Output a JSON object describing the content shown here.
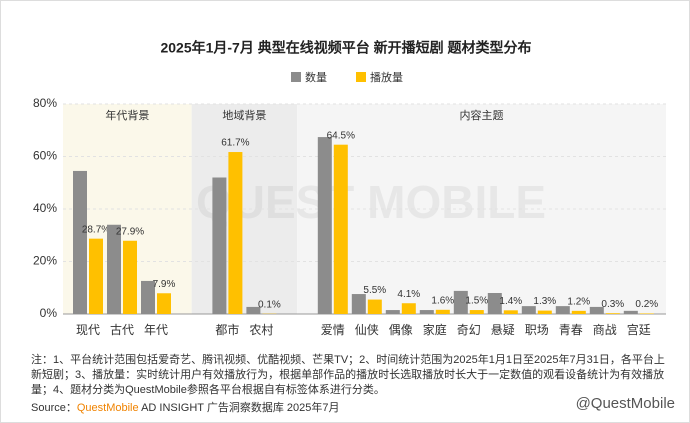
{
  "chart_data": {
    "type": "bar",
    "title": "2025年1月-7月 典型在线视频平台 新开播短剧 题材类型分布",
    "categories": [
      "现代",
      "古代",
      "年代",
      "都市",
      "农村",
      "爱情",
      "仙侠",
      "偶像",
      "家庭",
      "奇幻",
      "悬疑",
      "职场",
      "青春",
      "商战",
      "宫廷"
    ],
    "groups": [
      {
        "name": "年代背景",
        "members": [
          "现代",
          "古代",
          "年代"
        ],
        "color": "#fbf8ea"
      },
      {
        "name": "地域背景",
        "members": [
          "都市",
          "农村"
        ],
        "color": "#ececec"
      },
      {
        "name": "内容主题",
        "members": [
          "爱情",
          "仙侠",
          "偶像",
          "家庭",
          "奇幻",
          "悬疑",
          "职场",
          "青春",
          "商战",
          "宫廷"
        ],
        "color": "#f5f5f5"
      }
    ],
    "series": [
      {
        "name": "数量",
        "color": "#8c8c8c",
        "values": [
          54.5,
          34,
          12.6,
          52,
          2.7,
          67.4,
          7.6,
          1.5,
          1.5,
          8.8,
          8,
          3,
          3,
          2.7,
          1.2
        ]
      },
      {
        "name": "播放量",
        "color": "#ffc000",
        "values": [
          28.7,
          27.9,
          7.9,
          61.7,
          0.1,
          64.5,
          5.5,
          4.1,
          1.6,
          1.5,
          1.4,
          1.3,
          1.2,
          0.3,
          0.2
        ],
        "value_labels": [
          "28.7%",
          "27.9%",
          "7.9%",
          "61.7%",
          "0.1%",
          "64.5%",
          "5.5%",
          "4.1%",
          "1.6%",
          "1.5%",
          "1.4%",
          "1.3%",
          "1.2%",
          "0.3%",
          "0.2%"
        ]
      }
    ],
    "ylim": [
      0,
      80
    ],
    "yticks": [
      {
        "value": 0,
        "label": "0%"
      },
      {
        "value": 20,
        "label": "20%"
      },
      {
        "value": 40,
        "label": "40%"
      },
      {
        "value": 60,
        "label": "60%"
      },
      {
        "value": 80,
        "label": "80%"
      }
    ],
    "grid": true,
    "note": "注：1、平台统计范围包括爱奇艺、腾讯视频、优酷视频、芒果TV；2、时间统计范围为2025年1月1日至2025年7月31日，各平台上新短剧；3、播放量：实时统计用户有效播放行为，根据单部作品的播放时长选取播放时长大于一定数值的观看设备统计为有效播放量；4、题材分类为QuestMobile参照各平台根据自有标签体系进行分类。",
    "source_prefix": "Source：",
    "source_brand": "QuestMobile",
    "source_rest": " AD INSIGHT 广告洞察数据库 2025年7月",
    "watermark": "QUEST MOBILE",
    "credit": "@QuestMobile"
  }
}
